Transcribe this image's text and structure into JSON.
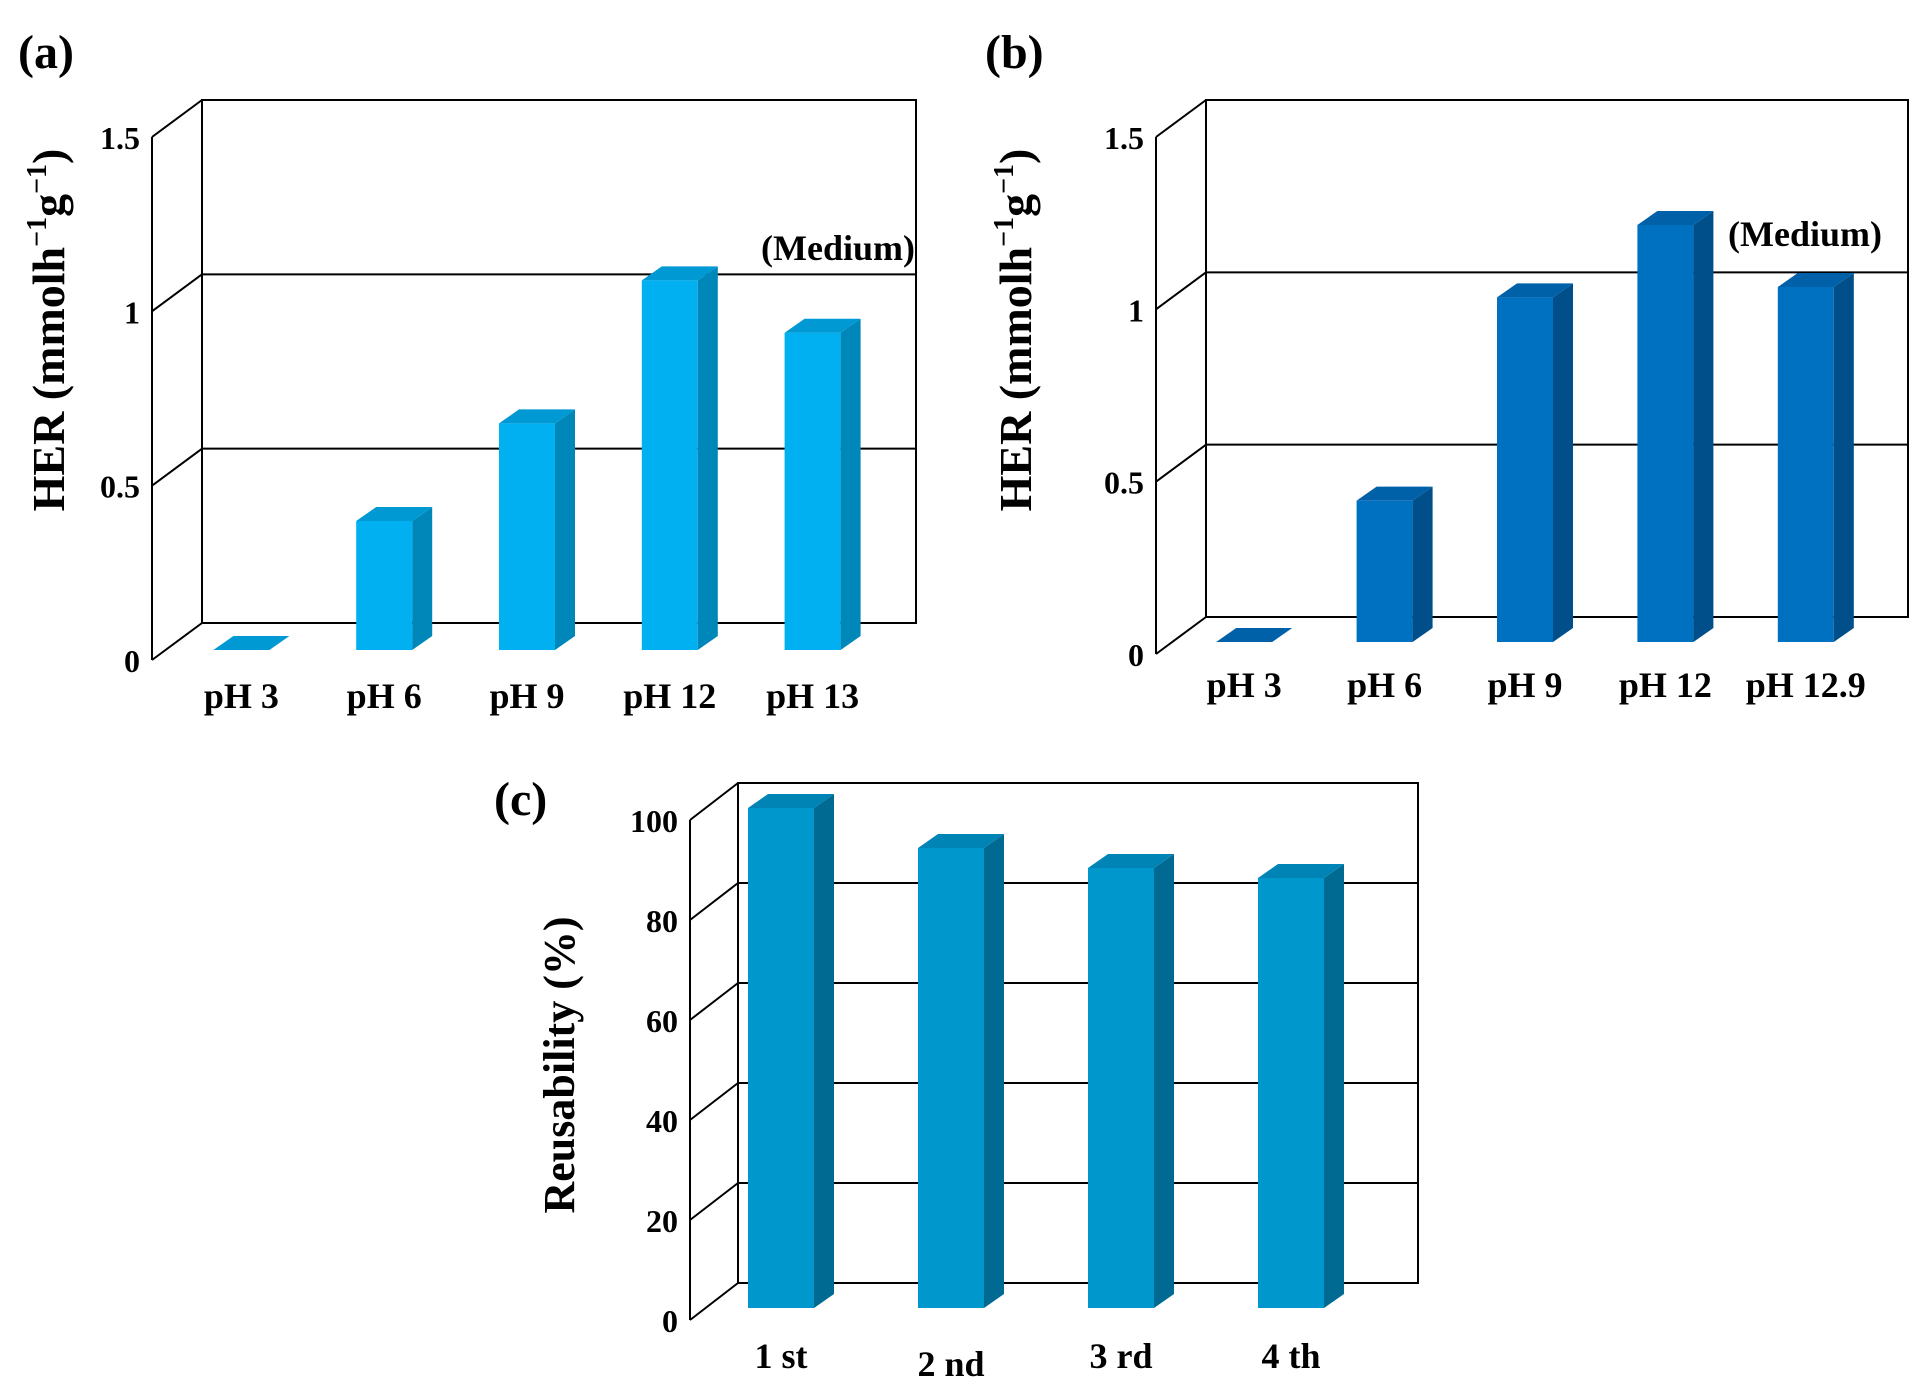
{
  "chart_data": [
    {
      "type": "bar",
      "panel_label": "(a)",
      "categories": [
        "pH 3",
        "pH 6",
        "pH 9",
        "pH 12",
        "pH 13"
      ],
      "values": [
        0,
        0.37,
        0.65,
        1.06,
        0.91
      ],
      "ylabel_main": "HER (mmolh",
      "ylabel_sup1": "−1",
      "ylabel_mid": "g",
      "ylabel_sup2": "−1",
      "ylabel_end": ")",
      "yticks": [
        "0",
        "0.5",
        "1",
        "1.5"
      ],
      "ylim": [
        0,
        1.5
      ],
      "annotation": "(Medium)",
      "colors": {
        "front": "#00b0f0",
        "side": "#0087ba",
        "top": "#0099d4"
      }
    },
    {
      "type": "bar",
      "panel_label": "(b)",
      "categories": [
        "pH 3",
        "pH 6",
        "pH 9",
        "pH 12",
        "pH 12.9"
      ],
      "values": [
        0,
        0.41,
        1.0,
        1.21,
        1.03
      ],
      "ylabel_main": "HER (mmolh",
      "ylabel_sup1": "−1",
      "ylabel_mid": "g",
      "ylabel_sup2": "−1",
      "ylabel_end": ")",
      "yticks": [
        "0",
        "0.5",
        "1",
        "1.5"
      ],
      "ylim": [
        0,
        1.5
      ],
      "annotation": "(Medium)",
      "colors": {
        "front": "#0070c0",
        "side": "#004f8a",
        "top": "#0060a8"
      }
    },
    {
      "type": "bar",
      "panel_label": "(c)",
      "categories": [
        "1 st",
        "2 nd",
        "3 rd",
        "4 th"
      ],
      "values": [
        100,
        92,
        88,
        86
      ],
      "ylabel": "Reusability (%)",
      "yticks": [
        "0",
        "20",
        "40",
        "60",
        "80",
        "100"
      ],
      "ylim": [
        0,
        100
      ],
      "colors": {
        "front": "#0097cc",
        "side": "#006a93",
        "top": "#0084b6"
      }
    }
  ]
}
